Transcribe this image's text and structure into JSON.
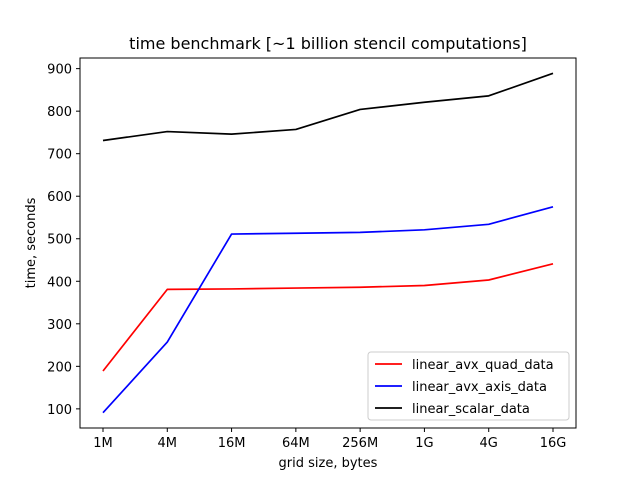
{
  "chart_data": {
    "type": "line",
    "title": "time benchmark [~1 billion stencil computations]",
    "xlabel": "grid size, bytes",
    "ylabel": "time, seconds",
    "categories": [
      "1M",
      "4M",
      "16M",
      "64M",
      "256M",
      "1G",
      "4G",
      "16G"
    ],
    "ylim": [
      55,
      925
    ],
    "yticks": [
      100,
      200,
      300,
      400,
      500,
      600,
      700,
      800,
      900
    ],
    "grid": false,
    "legend_position": "lower-right",
    "series": [
      {
        "name": "linear_avx_quad_data",
        "color": "#ff0000",
        "values": [
          189,
          381,
          382,
          384,
          386,
          390,
          403,
          441
        ]
      },
      {
        "name": "linear_avx_axis_data",
        "color": "#0000ff",
        "values": [
          91,
          257,
          511,
          513,
          515,
          521,
          534,
          575
        ]
      },
      {
        "name": "linear_scalar_data",
        "color": "#000000",
        "values": [
          731,
          752,
          746,
          757,
          804,
          821,
          836,
          889
        ]
      }
    ]
  }
}
